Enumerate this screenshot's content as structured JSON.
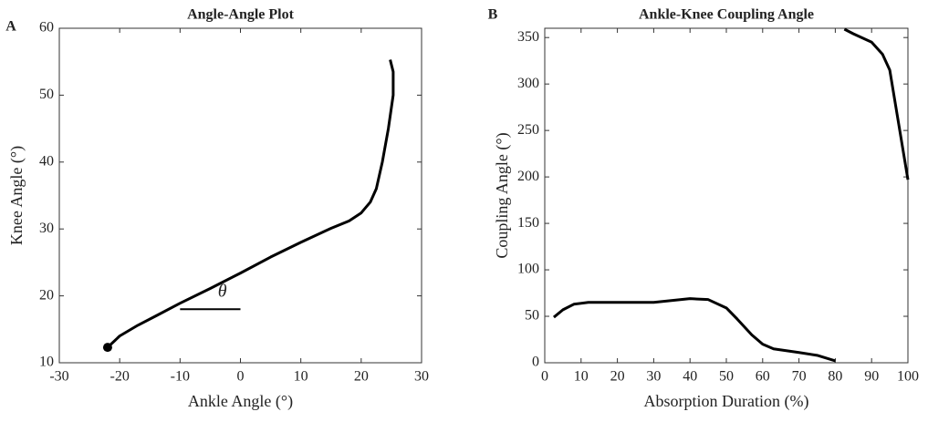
{
  "chart_data": [
    {
      "type": "line",
      "panel_label": "A",
      "title": "Angle-Angle Plot",
      "x_label": "Ankle Angle (°)",
      "y_label": "Knee Angle (°)",
      "x": [
        -22,
        -20,
        -17,
        -14,
        -10,
        -5,
        0,
        5,
        10,
        15,
        18,
        20,
        21.5,
        22.5,
        23.5,
        24.5,
        25.3,
        25.3,
        24.8
      ],
      "series": [
        {
          "color": "#000000",
          "values": [
            12.3,
            14,
            15.6,
            17,
            18.9,
            21.1,
            23.4,
            25.8,
            28,
            30.1,
            31.2,
            32.4,
            34,
            36,
            40,
            45,
            50,
            53.5,
            55.3
          ]
        }
      ],
      "start_marker": true,
      "xlim": [
        -30,
        30
      ],
      "xticks": [
        -30,
        -20,
        -10,
        0,
        10,
        20,
        30
      ],
      "ylim": [
        10,
        60
      ],
      "yticks": [
        10,
        20,
        30,
        40,
        50,
        60
      ],
      "annotation": {
        "text": "θ",
        "x": -3,
        "y": 20.5
      },
      "reference_line": {
        "x": [
          -10,
          0
        ],
        "y": [
          18,
          18
        ]
      }
    },
    {
      "type": "line",
      "panel_label": "B",
      "title": "Ankle-Knee Coupling Angle",
      "x_label": "Absorption Duration (%)",
      "y_label": "Coupling Angle (°)",
      "x": [
        2.5,
        5,
        8,
        12,
        20,
        30,
        40,
        45,
        50,
        53,
        57,
        60,
        63,
        70,
        75,
        80,
        81,
        82.5,
        85,
        90,
        93,
        95,
        100
      ],
      "series": [
        {
          "color": "#000000",
          "values": [
            49,
            57,
            63,
            65,
            65,
            65,
            69,
            68,
            59,
            47,
            30,
            20,
            15,
            11,
            8,
            2,
            null,
            359,
            354,
            345,
            332,
            315,
            197
          ]
        }
      ],
      "start_marker": false,
      "xlim": [
        0,
        100
      ],
      "xticks": [
        0,
        10,
        20,
        30,
        40,
        50,
        60,
        70,
        80,
        90,
        100
      ],
      "ylim": [
        0,
        360
      ],
      "yticks": [
        0,
        50,
        100,
        150,
        200,
        250,
        300,
        350
      ]
    }
  ]
}
